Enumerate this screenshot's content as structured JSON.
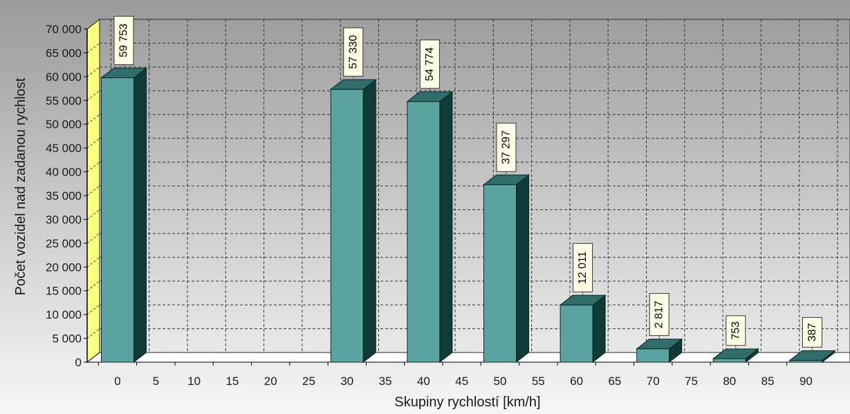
{
  "chart_data": {
    "type": "bar",
    "title": "",
    "xlabel": "Skupiny rychlostí [km/h]",
    "ylabel": "Počet vozidel nad zadanou rychlost",
    "categories": [
      "0",
      "5",
      "10",
      "15",
      "20",
      "25",
      "30",
      "35",
      "40",
      "45",
      "50",
      "55",
      "60",
      "65",
      "70",
      "75",
      "80",
      "85",
      "90"
    ],
    "values": [
      59753,
      0,
      0,
      0,
      0,
      0,
      57330,
      0,
      54774,
      0,
      37297,
      0,
      12011,
      0,
      2817,
      0,
      753,
      0,
      387
    ],
    "data_labels": [
      "59 753",
      null,
      null,
      null,
      null,
      null,
      "57 330",
      null,
      "54 774",
      null,
      "37 297",
      null,
      "12 011",
      null,
      "2 817",
      null,
      "753",
      null,
      "387"
    ],
    "yticks": [
      "0",
      "5 000",
      "10 000",
      "15 000",
      "20 000",
      "25 000",
      "30 000",
      "35 000",
      "40 000",
      "45 000",
      "50 000",
      "55 000",
      "60 000",
      "65 000",
      "70 000"
    ],
    "ylim": [
      0,
      70000
    ],
    "grid": true,
    "legend": "none",
    "style": "3d",
    "colors": {
      "bar_front": "#5aa3a0",
      "bar_top": "#2f6e6b",
      "bar_side": "#0f3a38",
      "wall_accent": "#ffff80",
      "label_fill": "#ffffe6"
    }
  }
}
